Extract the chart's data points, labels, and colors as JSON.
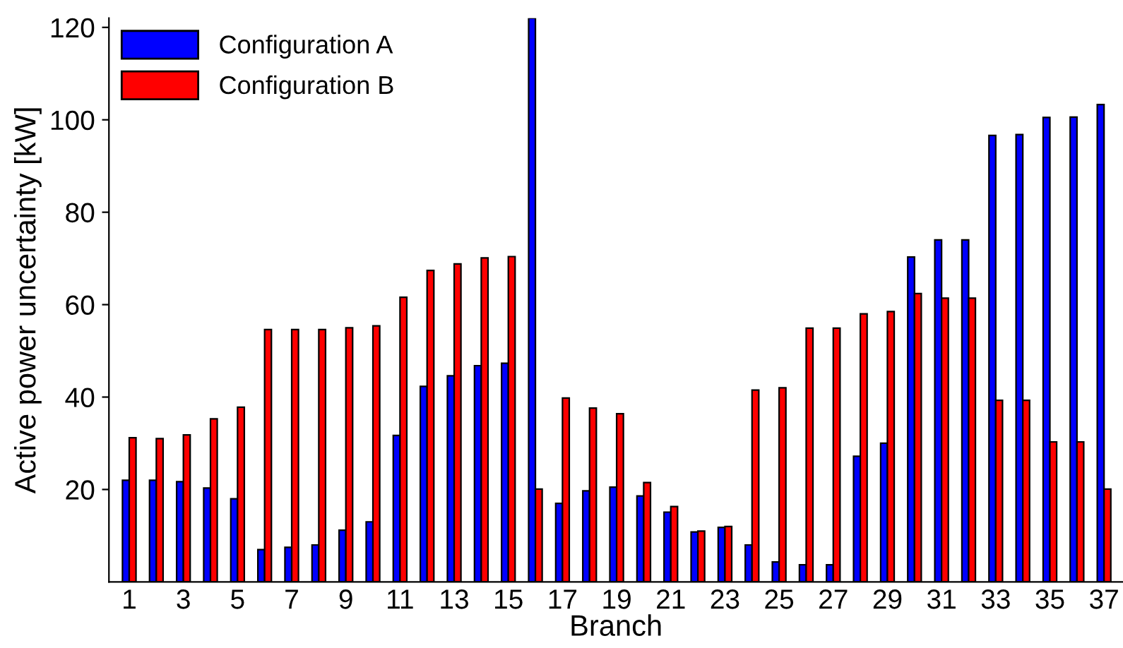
{
  "chart_data": {
    "type": "bar",
    "xlabel": "Branch",
    "ylabel": "Active power uncertainty [kW]",
    "categories": [
      "1",
      null,
      "3",
      null,
      "5",
      null,
      "7",
      null,
      "9",
      null,
      "11",
      null,
      "13",
      null,
      "15",
      null,
      "17",
      null,
      "19",
      null,
      "21",
      null,
      "23",
      null,
      "25",
      null,
      "27",
      null,
      "29",
      null,
      "31",
      null,
      "33",
      null,
      "35",
      null,
      "37"
    ],
    "series": [
      {
        "name": "Configuration A",
        "color": "#0000ff",
        "values": [
          22,
          22,
          21.7,
          20.3,
          18,
          7,
          7.5,
          8,
          11.2,
          13,
          31.7,
          42.3,
          44.6,
          46.8,
          47.3,
          122,
          17,
          19.7,
          20.5,
          18.6,
          15.1,
          10.8,
          11.8,
          8,
          4.3,
          3.7,
          3.7,
          27.2,
          30,
          70.3,
          74,
          74,
          96.6,
          96.8,
          100.5,
          100.6,
          103.3
        ]
      },
      {
        "name": "Configuration B",
        "color": "#ff0000",
        "values": [
          31.2,
          31,
          31.8,
          35.3,
          37.8,
          54.6,
          54.6,
          54.6,
          55,
          55.4,
          61.6,
          67.4,
          68.8,
          70.1,
          70.4,
          20.1,
          39.8,
          37.6,
          36.4,
          21.5,
          16.3,
          11,
          12,
          41.5,
          42,
          54.9,
          54.9,
          58,
          58.5,
          62.4,
          61.4,
          61.4,
          39.3,
          39.3,
          30.3,
          30.3,
          20.1
        ]
      }
    ],
    "ylim": [
      0,
      122
    ],
    "yticks": [
      20,
      40,
      60,
      80,
      100,
      120
    ],
    "grid": false,
    "legend": "top left"
  }
}
